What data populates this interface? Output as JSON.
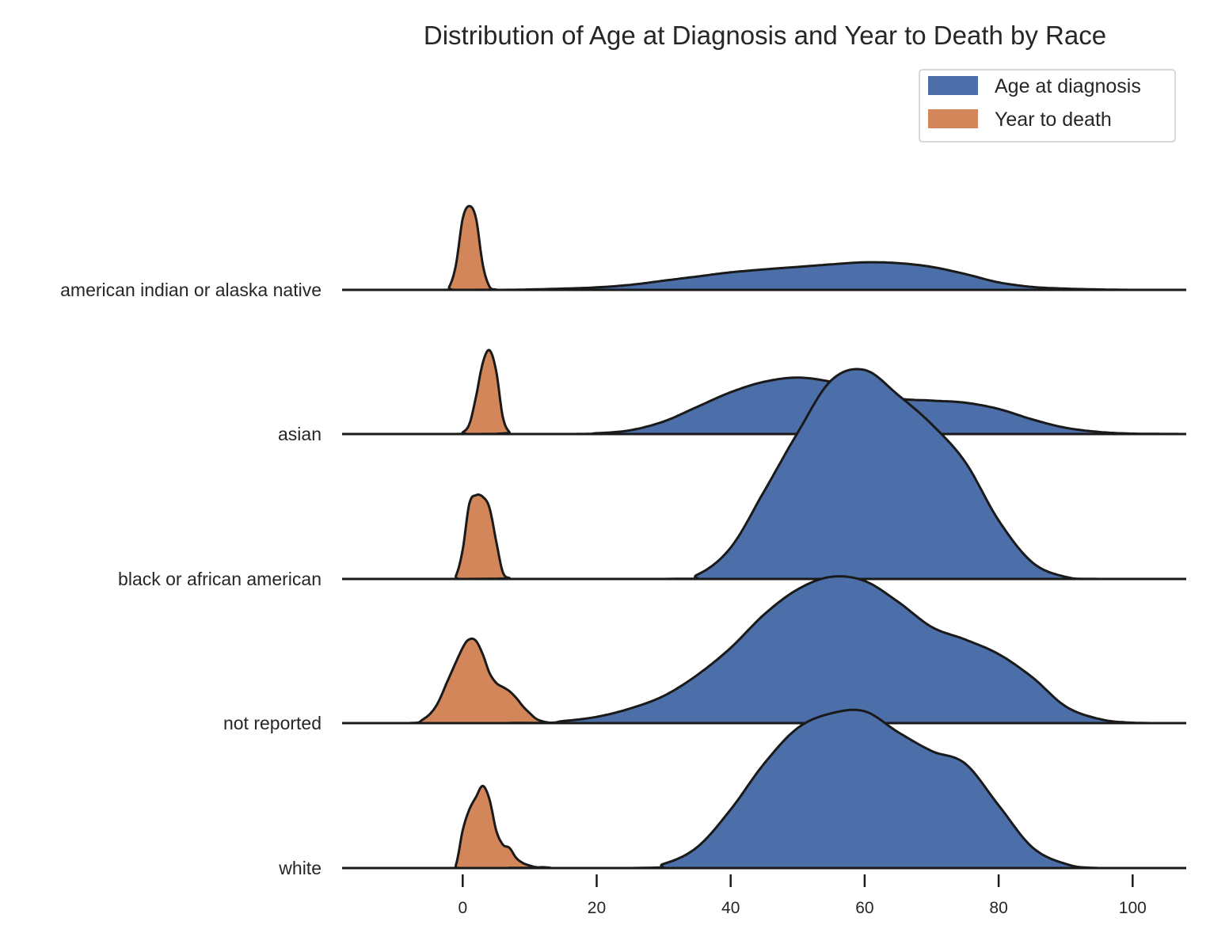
{
  "chart_data": {
    "type": "ridgeline-density",
    "title": "Distribution of Age at Diagnosis and Year to Death by Race",
    "xlabel": "",
    "ylabel": "",
    "xlim": [
      -18,
      108
    ],
    "xticks": [
      0,
      20,
      40,
      60,
      80,
      100
    ],
    "grid": false,
    "legend_position": "top-right",
    "series": [
      {
        "name": "Age at diagnosis",
        "color": "#4c6faa"
      },
      {
        "name": "Year to death",
        "color": "#d2865a"
      }
    ],
    "rows": [
      {
        "label": "american indian or alaska native",
        "age_at_diagnosis": {
          "x": [
            -18,
            5,
            10,
            15,
            20,
            25,
            30,
            35,
            40,
            45,
            50,
            55,
            60,
            65,
            70,
            75,
            80,
            85,
            90,
            95,
            100,
            108
          ],
          "density": [
            0,
            0,
            0.002,
            0.006,
            0.012,
            0.024,
            0.044,
            0.064,
            0.084,
            0.098,
            0.11,
            0.122,
            0.132,
            0.128,
            0.11,
            0.076,
            0.036,
            0.014,
            0.006,
            0.002,
            0,
            0
          ]
        },
        "year_to_death": {
          "x": [
            -18,
            -3,
            -2,
            -1,
            0,
            1,
            2,
            3,
            4,
            5,
            6,
            108
          ],
          "density": [
            0,
            0,
            0.04,
            0.3,
            0.85,
            1.0,
            0.85,
            0.3,
            0.04,
            0.004,
            0,
            0
          ]
        }
      },
      {
        "label": "asian",
        "age_at_diagnosis": {
          "x": [
            -18,
            15,
            20,
            25,
            30,
            35,
            40,
            45,
            50,
            55,
            60,
            65,
            70,
            75,
            80,
            85,
            90,
            95,
            100,
            108
          ],
          "density": [
            0,
            0,
            0.004,
            0.018,
            0.06,
            0.13,
            0.2,
            0.25,
            0.27,
            0.25,
            0.21,
            0.17,
            0.16,
            0.15,
            0.12,
            0.07,
            0.03,
            0.01,
            0.002,
            0
          ]
        },
        "year_to_death": {
          "x": [
            -18,
            -1,
            0,
            1,
            2,
            3,
            4,
            5,
            6,
            7,
            8,
            108
          ],
          "density": [
            0,
            0,
            0.02,
            0.12,
            0.45,
            0.85,
            1.0,
            0.75,
            0.2,
            0.02,
            0,
            0
          ]
        }
      },
      {
        "label": "black or african american",
        "age_at_diagnosis": {
          "x": [
            -18,
            30,
            35,
            40,
            45,
            50,
            55,
            60,
            65,
            70,
            75,
            80,
            85,
            90,
            95,
            108
          ],
          "density": [
            0,
            0,
            0.02,
            0.15,
            0.42,
            0.7,
            0.95,
            1.0,
            0.88,
            0.74,
            0.56,
            0.28,
            0.08,
            0.01,
            0,
            0
          ]
        },
        "year_to_death": {
          "x": [
            -18,
            -2,
            -1,
            0,
            1,
            2,
            3,
            4,
            5,
            6,
            7,
            8,
            108
          ],
          "density": [
            0,
            0,
            0.04,
            0.35,
            0.9,
            1.0,
            0.98,
            0.85,
            0.45,
            0.08,
            0.01,
            0,
            0
          ]
        }
      },
      {
        "label": "not reported",
        "age_at_diagnosis": {
          "x": [
            -18,
            10,
            15,
            20,
            25,
            30,
            35,
            40,
            45,
            50,
            55,
            60,
            65,
            70,
            75,
            80,
            85,
            90,
            95,
            100,
            108
          ],
          "density": [
            0,
            0,
            0.01,
            0.03,
            0.07,
            0.13,
            0.23,
            0.36,
            0.52,
            0.64,
            0.7,
            0.68,
            0.58,
            0.46,
            0.4,
            0.33,
            0.22,
            0.08,
            0.02,
            0.002,
            0
          ]
        },
        "year_to_death": {
          "x": [
            -18,
            -8,
            -6,
            -4,
            -2,
            0,
            1,
            2,
            3,
            4,
            5,
            6,
            7,
            8,
            9,
            10,
            11,
            12,
            13,
            14,
            108
          ],
          "density": [
            0,
            0,
            0.04,
            0.2,
            0.55,
            0.9,
            1.0,
            0.98,
            0.82,
            0.6,
            0.48,
            0.43,
            0.38,
            0.3,
            0.2,
            0.12,
            0.05,
            0.02,
            0.005,
            0,
            0
          ]
        }
      },
      {
        "label": "white",
        "age_at_diagnosis": {
          "x": [
            -18,
            25,
            30,
            35,
            40,
            45,
            50,
            55,
            60,
            65,
            70,
            75,
            80,
            85,
            90,
            95,
            108
          ],
          "density": [
            0,
            0,
            0.02,
            0.1,
            0.28,
            0.5,
            0.67,
            0.74,
            0.75,
            0.65,
            0.56,
            0.5,
            0.3,
            0.1,
            0.02,
            0,
            0
          ]
        },
        "year_to_death": {
          "x": [
            -18,
            -2,
            -1,
            0,
            1,
            2,
            3,
            4,
            5,
            6,
            7,
            8,
            9,
            10,
            11,
            12,
            13,
            14,
            108
          ],
          "density": [
            0,
            0,
            0.04,
            0.45,
            0.7,
            0.85,
            0.98,
            0.82,
            0.45,
            0.28,
            0.24,
            0.12,
            0.06,
            0.03,
            0.01,
            0.01,
            0.005,
            0,
            0
          ]
        }
      }
    ]
  }
}
